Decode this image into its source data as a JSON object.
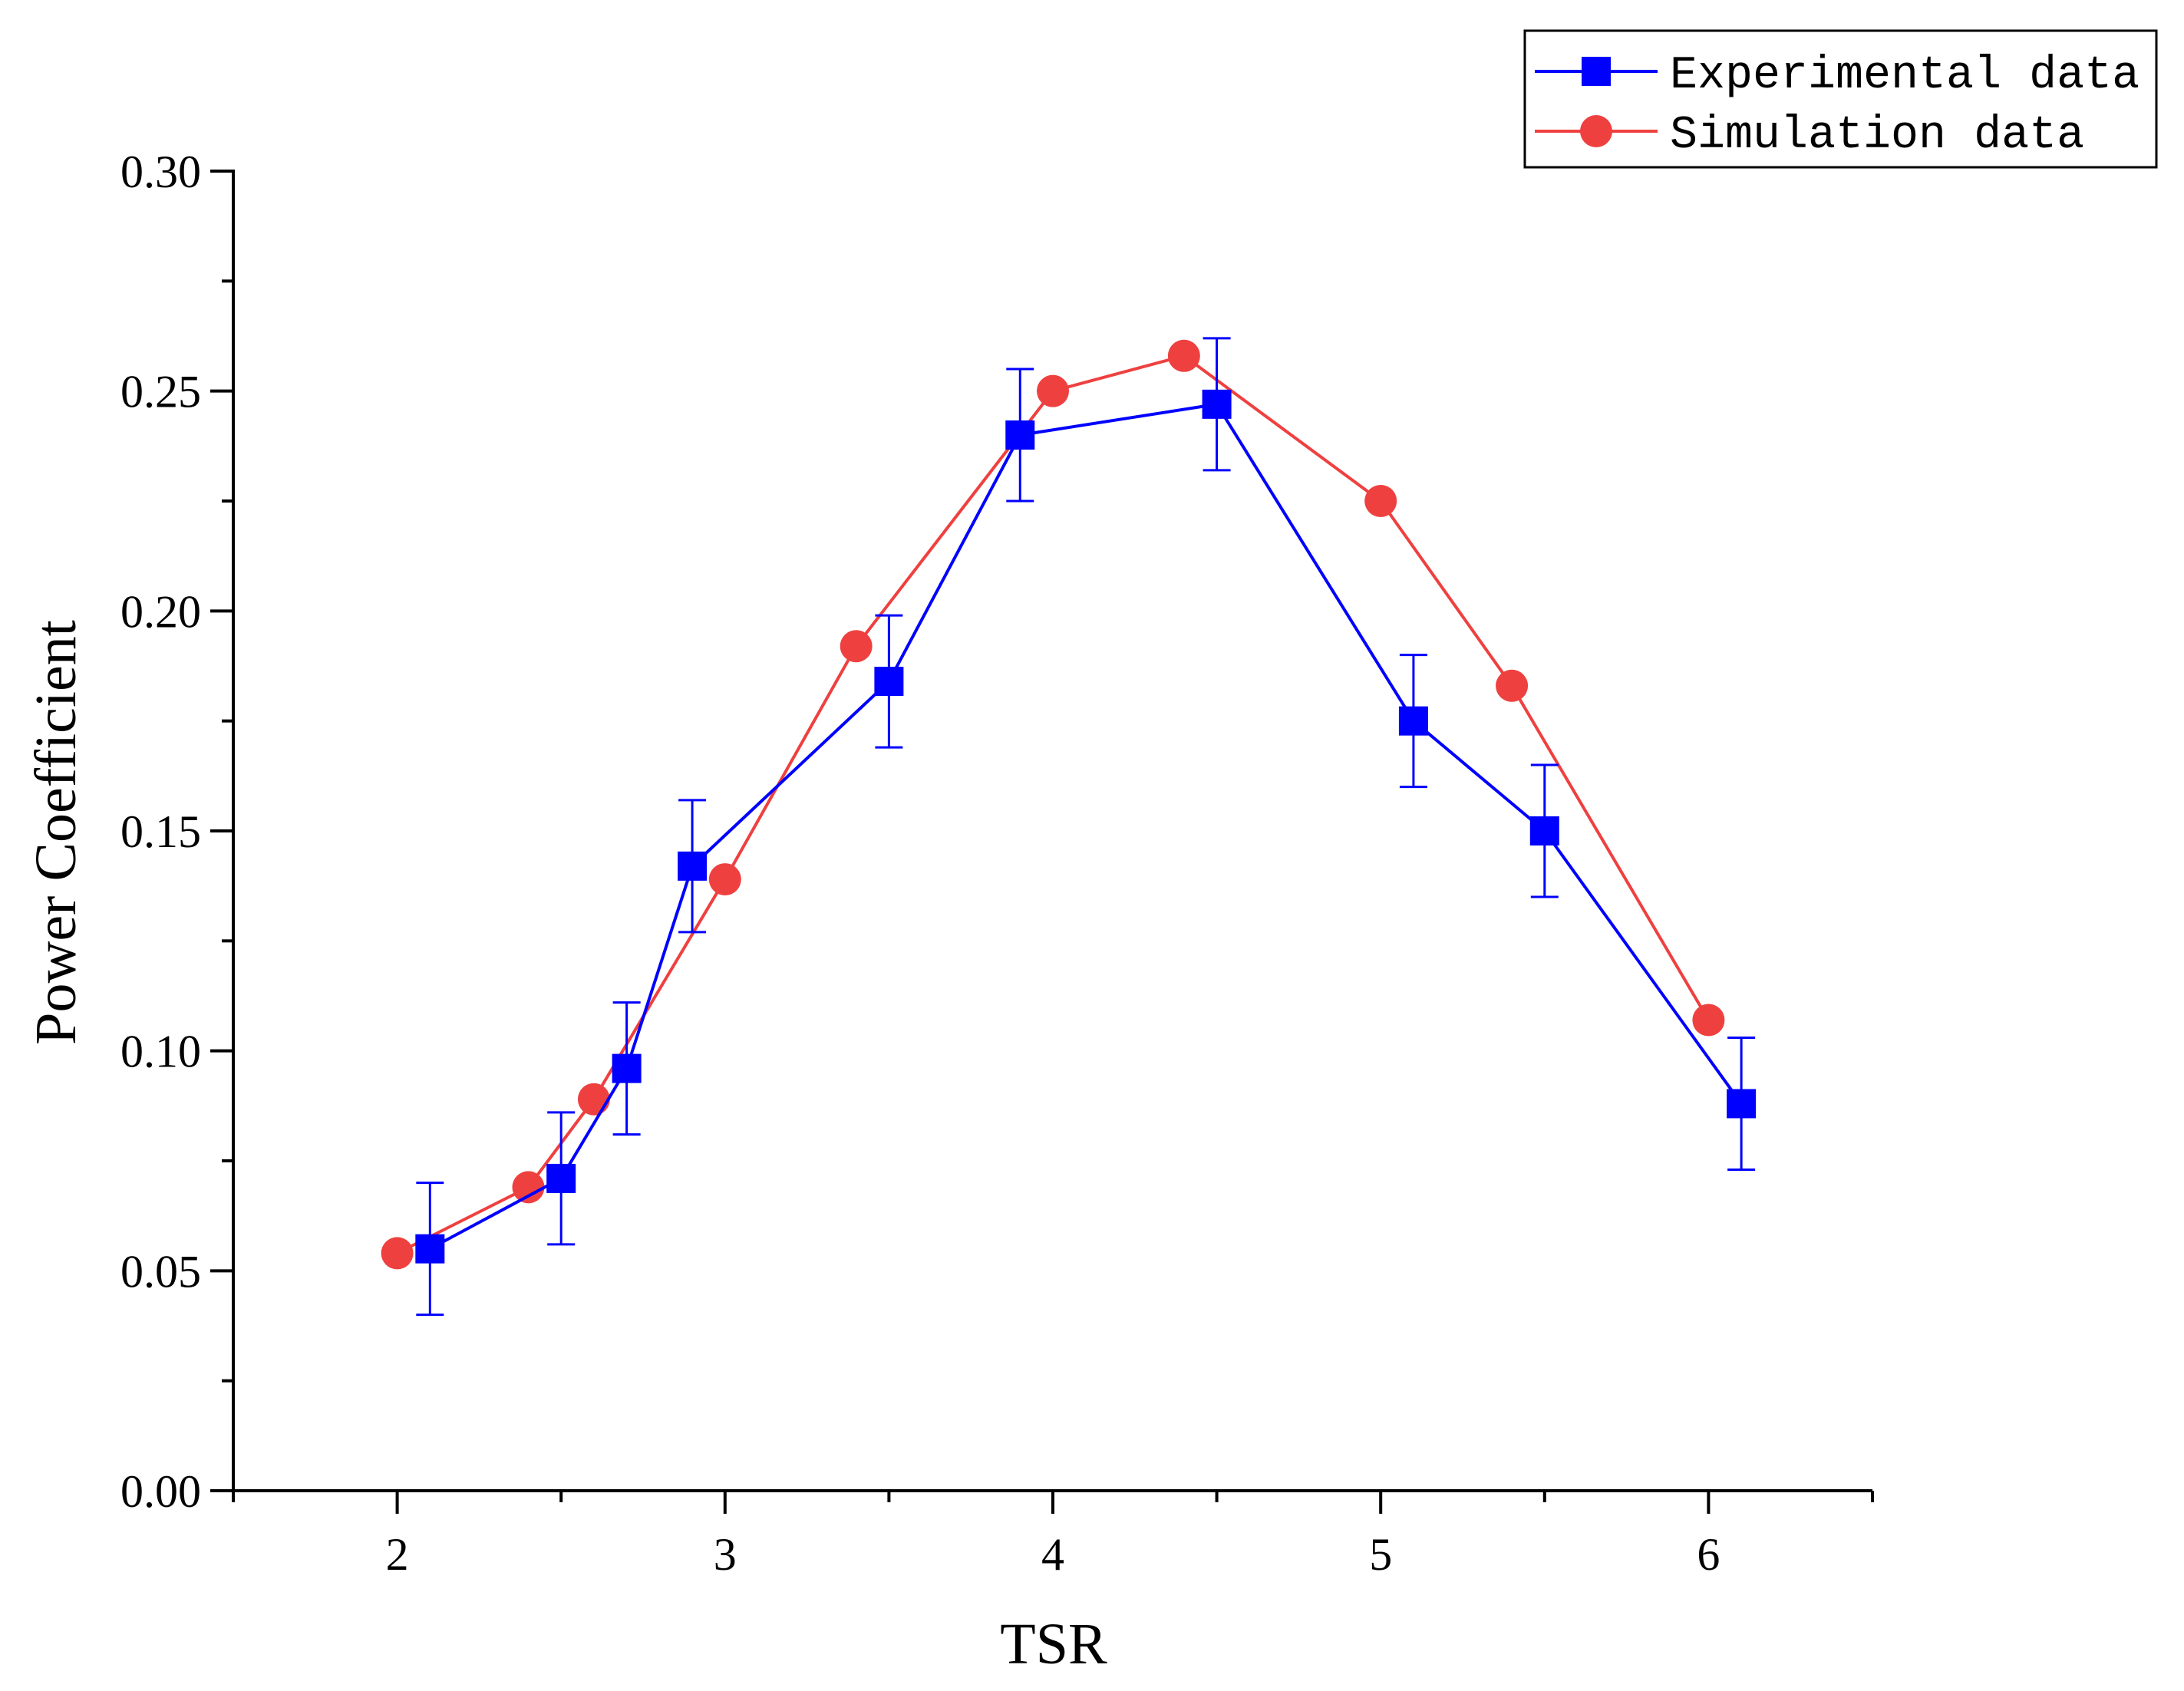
{
  "chart_data": {
    "type": "line",
    "title": "",
    "xlabel": "TSR",
    "ylabel": "Power Coefficient",
    "xlim": [
      1.5,
      6.5
    ],
    "ylim": [
      0.0,
      0.3
    ],
    "x_ticks": [
      2,
      3,
      4,
      5,
      6
    ],
    "x_tick_labels": [
      "2",
      "3",
      "4",
      "5",
      "6"
    ],
    "y_ticks": [
      0.0,
      0.05,
      0.1,
      0.15,
      0.2,
      0.25,
      0.3
    ],
    "y_tick_labels": [
      "0.00",
      "0.05",
      "0.10",
      "0.15",
      "0.20",
      "0.25",
      "0.30"
    ],
    "grid": false,
    "legend_position": "top-right",
    "series": [
      {
        "name": "Experimental data",
        "color": "#0000ff",
        "marker": "square",
        "x": [
          2.1,
          2.5,
          2.7,
          2.9,
          3.5,
          3.9,
          4.5,
          5.1,
          5.5,
          6.1
        ],
        "y": [
          0.055,
          0.071,
          0.096,
          0.142,
          0.184,
          0.24,
          0.247,
          0.175,
          0.15,
          0.088
        ],
        "error": [
          0.015,
          0.015,
          0.015,
          0.015,
          0.015,
          0.015,
          0.015,
          0.015,
          0.015,
          0.015
        ]
      },
      {
        "name": "Simulation data",
        "color": "#ef4040",
        "marker": "circle",
        "x": [
          2.0,
          2.4,
          2.6,
          3.0,
          3.4,
          4.0,
          4.4,
          5.0,
          5.4,
          6.0
        ],
        "y": [
          0.054,
          0.069,
          0.089,
          0.139,
          0.192,
          0.25,
          0.258,
          0.225,
          0.183,
          0.107
        ]
      }
    ]
  }
}
